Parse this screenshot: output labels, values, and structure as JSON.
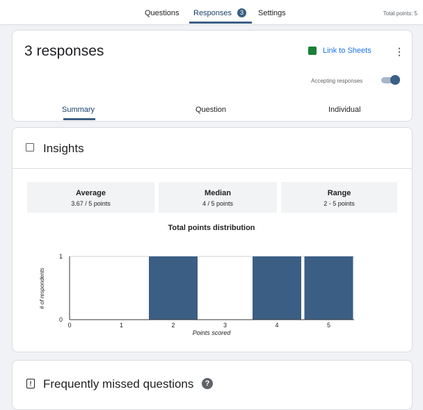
{
  "tabs": {
    "items": [
      "Questions",
      "Responses",
      "Settings"
    ],
    "badge": "3",
    "total_points": "Total points: 5"
  },
  "header": {
    "title": "3 responses",
    "link": "Link to Sheets",
    "accepting": "Accepting responses",
    "subtabs": [
      "Summary",
      "Question",
      "Individual"
    ]
  },
  "insights": {
    "title": "Insights",
    "stats": [
      {
        "label": "Average",
        "value": "3.67 / 5 points"
      },
      {
        "label": "Median",
        "value": "4 / 5 points"
      },
      {
        "label": "Range",
        "value": "2 - 5 points"
      }
    ]
  },
  "chart_data": {
    "type": "bar",
    "title": "Total points distribution",
    "x_label": "Points scored",
    "y_label": "# of respondents",
    "categories": [
      "0",
      "1",
      "2",
      "3",
      "4",
      "5"
    ],
    "values": [
      0,
      0,
      1,
      0,
      1,
      1
    ],
    "color": "#3b5e85",
    "ylim": [
      0,
      1
    ],
    "yticks": [
      0,
      1
    ]
  },
  "missed": {
    "title": "Frequently missed questions"
  }
}
